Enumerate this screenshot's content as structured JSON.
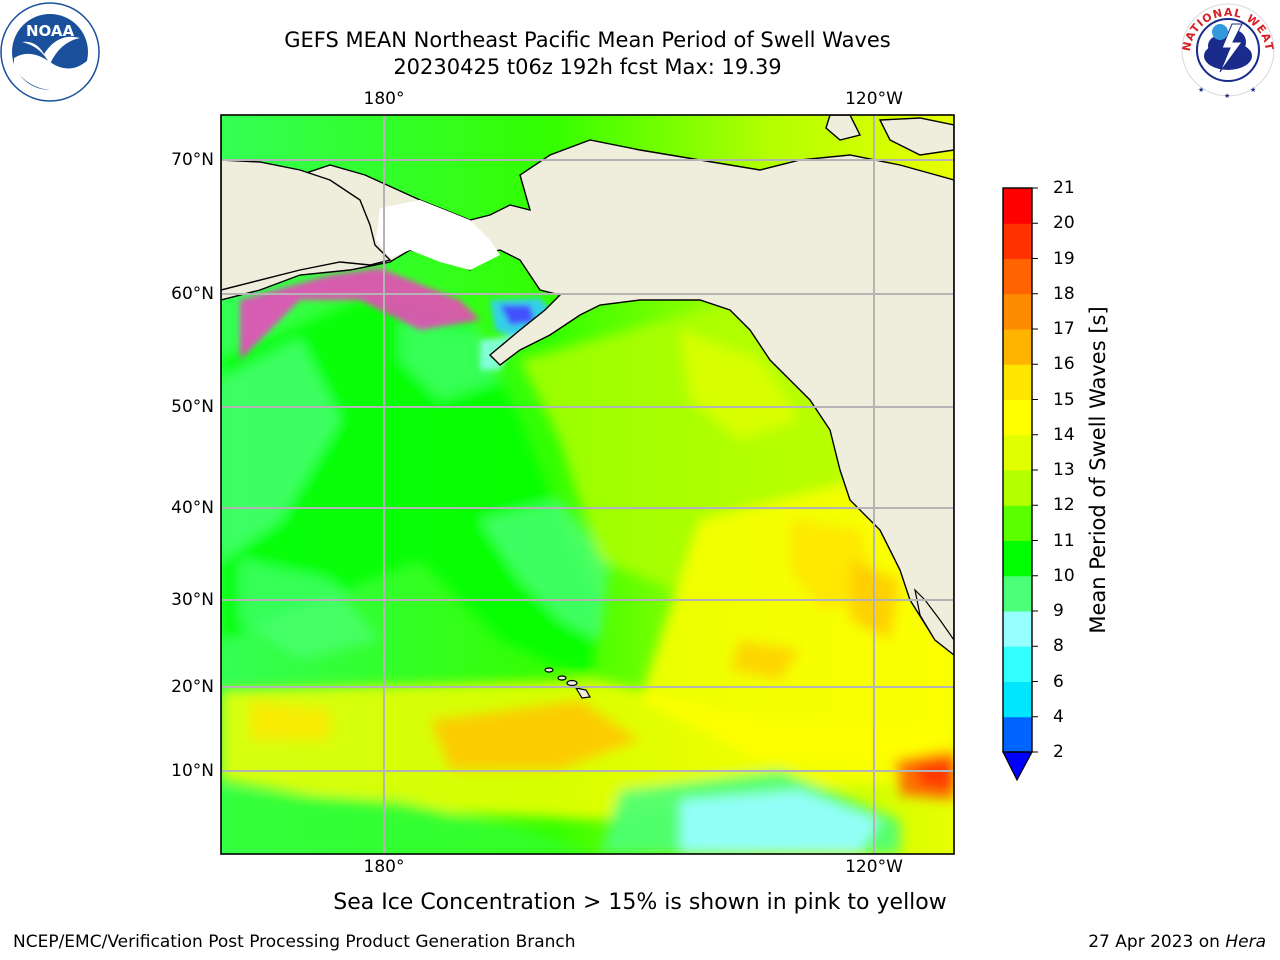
{
  "title": {
    "line1": "GEFS MEAN Northeast Pacific Mean Period of Swell Waves",
    "line2": "20230425 t06z 192h fcst   Max: 19.39"
  },
  "map": {
    "lon_top": [
      {
        "name": "lon-top-180",
        "label": "180°"
      },
      {
        "name": "lon-top-120w",
        "label": "120°W"
      }
    ],
    "lon_bottom": [
      {
        "name": "lon-bottom-180",
        "label": "180°"
      },
      {
        "name": "lon-bottom-120w",
        "label": "120°W"
      }
    ],
    "lat_labels": [
      "70°N",
      "60°N",
      "50°N",
      "40°N",
      "30°N",
      "20°N",
      "10°N"
    ],
    "land_color": "#efeddc",
    "grid_color": "#b4b4b4"
  },
  "colorbar": {
    "label": "Mean Period of Swell Waves [s]",
    "ticks": [
      "2",
      "4",
      "6",
      "8",
      "9",
      "10",
      "11",
      "12",
      "13",
      "14",
      "15",
      "16",
      "17",
      "18",
      "19",
      "20",
      "21"
    ],
    "colors": [
      "#0064ff",
      "#00e6ff",
      "#32ffff",
      "#96ffff",
      "#4bff78",
      "#00ff00",
      "#5aff00",
      "#b4ff00",
      "#e1ff00",
      "#ffff00",
      "#ffe600",
      "#ffb400",
      "#ff8c00",
      "#ff6400",
      "#ff3200",
      "#ff0000"
    ],
    "under_color": "#0000ff"
  },
  "note": "Sea Ice Concentration > 15% is shown in pink to yellow",
  "footer": {
    "left": "NCEP/EMC/Verification Post Processing Product Generation Branch",
    "right_prefix": "27 Apr 2023 on ",
    "right_host": "Hera"
  },
  "logos": {
    "noaa_text": "NOAA",
    "nws_text": "NATIONAL WEATHER SERVICE"
  }
}
